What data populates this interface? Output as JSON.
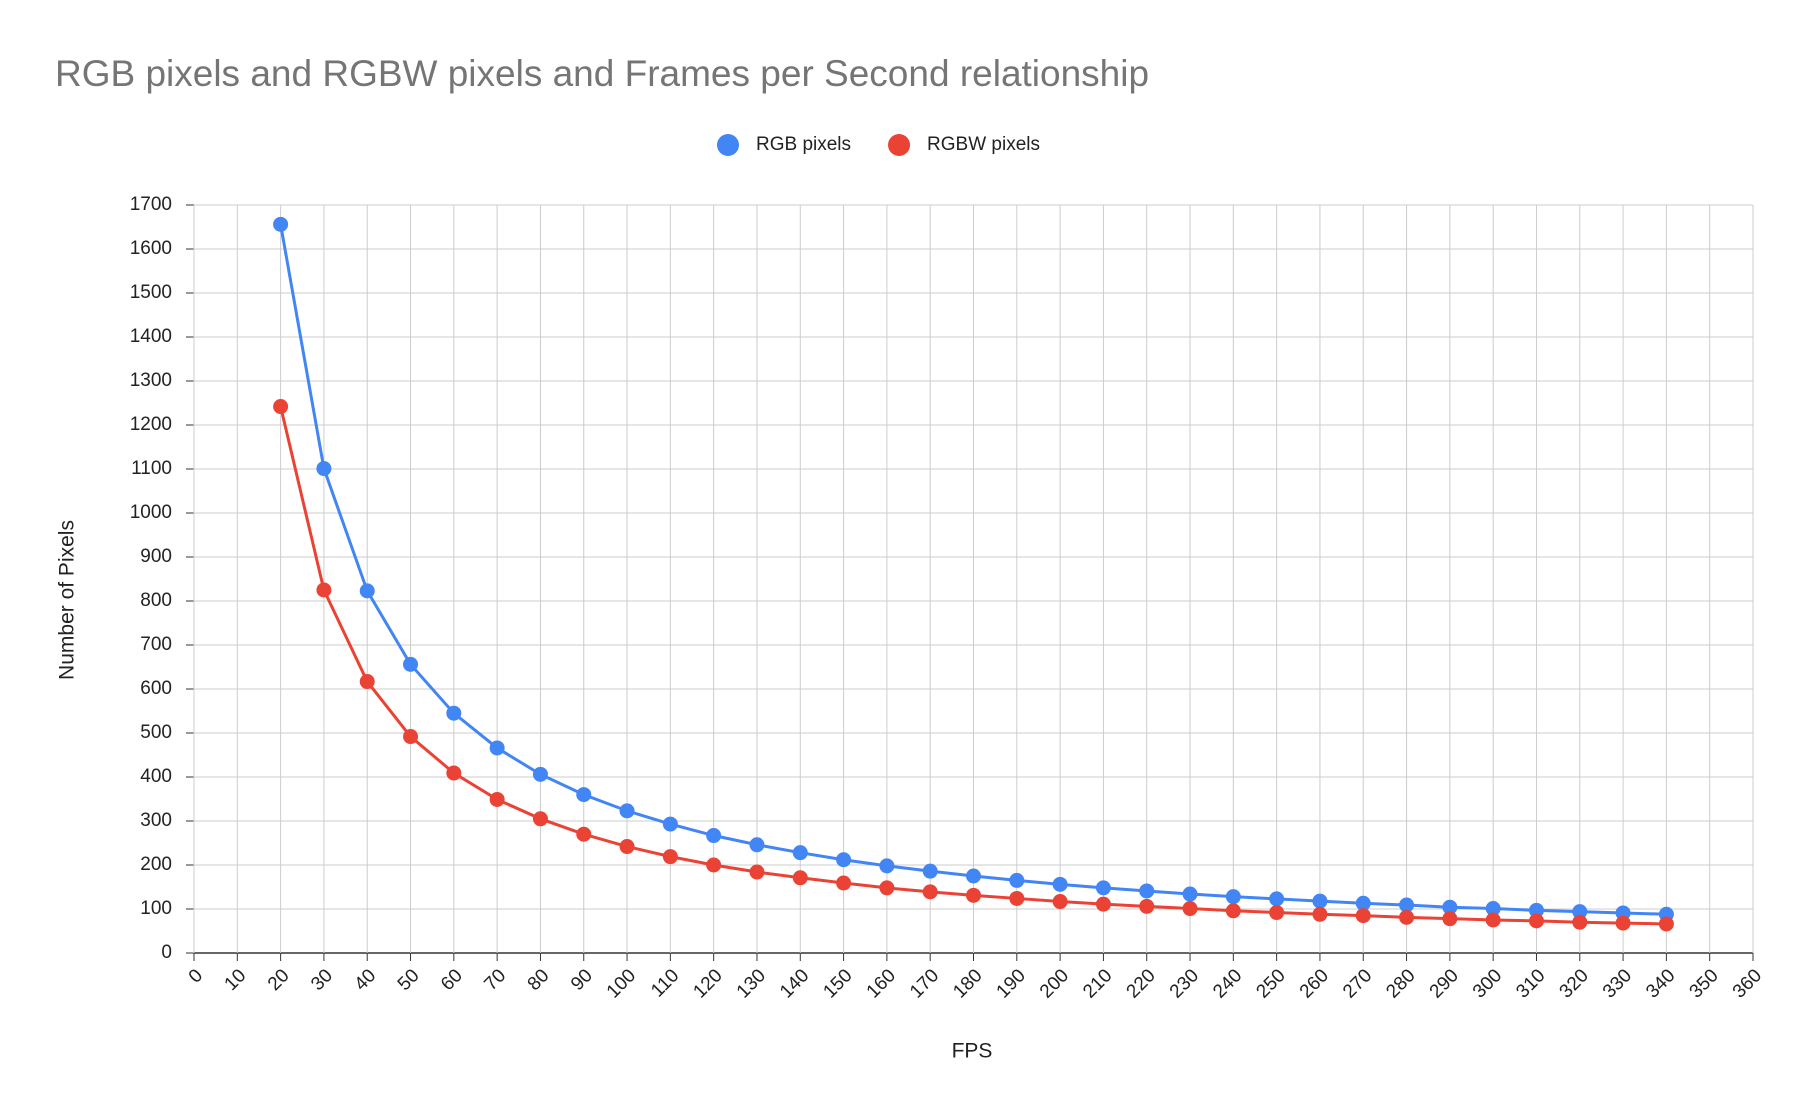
{
  "chart_data": {
    "type": "line",
    "title": "RGB pixels and RGBW pixels and Frames per Second relationship",
    "x_label": "FPS",
    "y_label": "Number of Pixels",
    "x": [
      20,
      30,
      40,
      50,
      60,
      70,
      80,
      90,
      100,
      110,
      120,
      130,
      140,
      150,
      160,
      170,
      180,
      190,
      200,
      210,
      220,
      230,
      240,
      250,
      260,
      270,
      280,
      290,
      300,
      310,
      320,
      330,
      340
    ],
    "series": [
      {
        "name": "RGB pixels",
        "color": "#4285f4",
        "values": [
          1656,
          1101,
          823,
          656,
          545,
          466,
          406,
          360,
          323,
          293,
          267,
          246,
          228,
          212,
          198,
          186,
          175,
          165,
          156,
          148,
          141,
          134,
          128,
          123,
          118,
          113,
          109,
          104,
          101,
          97,
          94,
          91,
          88
        ]
      },
      {
        "name": "RGBW pixels",
        "color": "#ea4335",
        "values": [
          1242,
          825,
          617,
          492,
          409,
          349,
          305,
          270,
          242,
          219,
          200,
          184,
          171,
          159,
          148,
          139,
          131,
          124,
          117,
          111,
          106,
          101,
          96,
          92,
          88,
          85,
          81,
          78,
          75,
          73,
          70,
          68,
          66
        ]
      }
    ],
    "xlim": [
      0,
      360
    ],
    "xticks": [
      0,
      10,
      20,
      30,
      40,
      50,
      60,
      70,
      80,
      90,
      100,
      110,
      120,
      130,
      140,
      150,
      160,
      170,
      180,
      190,
      200,
      210,
      220,
      230,
      240,
      250,
      260,
      270,
      280,
      290,
      300,
      310,
      320,
      330,
      340,
      350,
      360
    ],
    "ylim": [
      0,
      1700
    ],
    "yticks": [
      0,
      100,
      200,
      300,
      400,
      500,
      600,
      700,
      800,
      900,
      1000,
      1100,
      1200,
      1300,
      1400,
      1500,
      1600,
      1700
    ],
    "grid": true,
    "legend": "top"
  }
}
